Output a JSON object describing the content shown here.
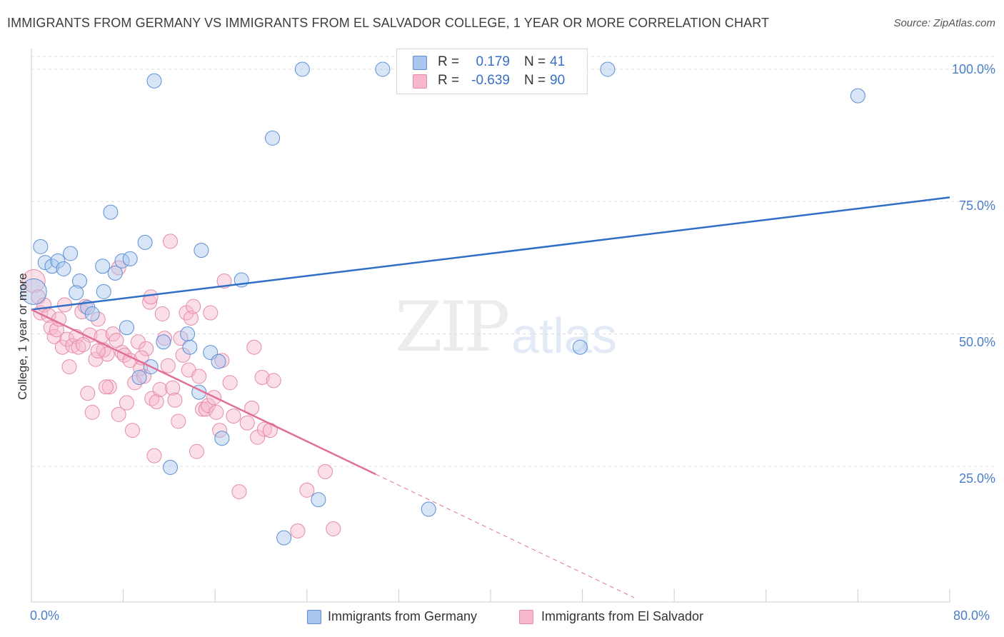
{
  "title": "IMMIGRANTS FROM GERMANY VS IMMIGRANTS FROM EL SALVADOR COLLEGE, 1 YEAR OR MORE CORRELATION CHART",
  "source": "Source: ZipAtlas.com",
  "watermark": {
    "zip": "ZIP",
    "atlas": "atlas"
  },
  "colors": {
    "germany_fill": "#a8c6ee",
    "germany_stroke": "#5b8fd6",
    "germany_line": "#2f6fc6",
    "elsal_fill": "#f7b8cb",
    "elsal_stroke": "#e58aa8",
    "elsal_line": "#e0709a",
    "grid": "#dcdcdc",
    "axis_text": "#4a7fc8"
  },
  "legend": {
    "germany": {
      "r_label": "R =",
      "r_value": "0.179",
      "n_label": "N =",
      "n_value": "41"
    },
    "elsal": {
      "r_label": "R =",
      "r_value": "-0.639",
      "n_label": "N =",
      "n_value": "90"
    }
  },
  "bottom_legend": {
    "germany": "Immigrants from Germany",
    "elsal": "Immigrants from El Salvador"
  },
  "chart_data": {
    "type": "scatter",
    "title": "IMMIGRANTS FROM GERMANY VS IMMIGRANTS FROM EL SALVADOR COLLEGE, 1 YEAR OR MORE CORRELATION CHART",
    "xlabel": "",
    "ylabel": "College, 1 year or more",
    "xlim": [
      0,
      80
    ],
    "ylim": [
      0,
      105
    ],
    "x_tick_labels": [
      "0.0%",
      "80.0%"
    ],
    "y_ticks": [
      25,
      50,
      75,
      100
    ],
    "y_tick_labels": [
      "25.0%",
      "50.0%",
      "75.0%",
      "100.0%"
    ],
    "grid": true,
    "legend_position": "top-center",
    "series": [
      {
        "name": "Immigrants from Germany",
        "R": 0.179,
        "N": 41,
        "trend": {
          "x": [
            0,
            80
          ],
          "y": [
            54.6,
            75.8
          ],
          "dashed_from": null
        },
        "points": [
          [
            0.2,
            58.0,
            18
          ],
          [
            0.8,
            66.5,
            10
          ],
          [
            1.2,
            63.5,
            10
          ],
          [
            1.8,
            62.8,
            10
          ],
          [
            2.3,
            63.8,
            10
          ],
          [
            2.8,
            62.3,
            10
          ],
          [
            3.4,
            65.2,
            10
          ],
          [
            4.2,
            60.0,
            10
          ],
          [
            3.9,
            57.8,
            10
          ],
          [
            4.9,
            55.0,
            10
          ],
          [
            5.3,
            53.8,
            10
          ],
          [
            6.2,
            62.8,
            10
          ],
          [
            6.3,
            58.0,
            10
          ],
          [
            6.9,
            73.0,
            10
          ],
          [
            7.3,
            61.5,
            10
          ],
          [
            7.9,
            63.8,
            10
          ],
          [
            8.6,
            64.2,
            10
          ],
          [
            9.9,
            67.3,
            10
          ],
          [
            10.7,
            97.8,
            10
          ],
          [
            11.5,
            48.5,
            10
          ],
          [
            13.6,
            50.0,
            10
          ],
          [
            13.8,
            47.5,
            10
          ],
          [
            14.6,
            39.0,
            10
          ],
          [
            14.8,
            65.8,
            10
          ],
          [
            15.6,
            46.5,
            10
          ],
          [
            16.6,
            30.3,
            10
          ],
          [
            18.3,
            60.2,
            10
          ],
          [
            21.0,
            87.0,
            10
          ],
          [
            23.6,
            100.0,
            10
          ],
          [
            30.6,
            100.0,
            10
          ],
          [
            50.2,
            100.0,
            10
          ],
          [
            72.0,
            95.0,
            10
          ],
          [
            12.1,
            24.8,
            10
          ],
          [
            22.0,
            11.5,
            10
          ],
          [
            25.0,
            18.7,
            10
          ],
          [
            34.6,
            16.9,
            10
          ],
          [
            47.8,
            47.5,
            10
          ],
          [
            9.4,
            41.8,
            10
          ],
          [
            10.4,
            43.8,
            10
          ],
          [
            8.3,
            51.2,
            10
          ],
          [
            16.3,
            44.8,
            10
          ]
        ]
      },
      {
        "name": "Immigrants from El Salvador",
        "R": -0.639,
        "N": 90,
        "trend": {
          "x": [
            0,
            30.0
          ],
          "y": [
            54.6,
            23.5
          ],
          "dashed_x": [
            30.0,
            52.5
          ],
          "dashed_y": [
            23.5,
            0.2
          ]
        },
        "points": [
          [
            0.2,
            60.0,
            16
          ],
          [
            0.6,
            57.0,
            10
          ],
          [
            0.8,
            54.0,
            10
          ],
          [
            1.1,
            55.5,
            10
          ],
          [
            1.5,
            53.5,
            10
          ],
          [
            1.7,
            51.2,
            10
          ],
          [
            2.0,
            49.5,
            10
          ],
          [
            2.2,
            50.8,
            10
          ],
          [
            2.4,
            52.8,
            10
          ],
          [
            2.7,
            47.5,
            10
          ],
          [
            2.9,
            55.5,
            10
          ],
          [
            3.1,
            49.0,
            10
          ],
          [
            3.3,
            43.8,
            10
          ],
          [
            3.6,
            47.8,
            10
          ],
          [
            3.9,
            49.5,
            10
          ],
          [
            4.1,
            47.5,
            10
          ],
          [
            4.4,
            54.2,
            10
          ],
          [
            4.7,
            55.2,
            10
          ],
          [
            4.9,
            38.8,
            10
          ],
          [
            5.1,
            49.8,
            10
          ],
          [
            5.3,
            35.2,
            10
          ],
          [
            5.6,
            45.2,
            10
          ],
          [
            5.8,
            52.8,
            10
          ],
          [
            6.1,
            49.5,
            10
          ],
          [
            6.3,
            47.0,
            10
          ],
          [
            6.6,
            46.2,
            10
          ],
          [
            6.8,
            40.0,
            10
          ],
          [
            7.1,
            50.0,
            10
          ],
          [
            7.4,
            48.8,
            10
          ],
          [
            7.6,
            34.8,
            10
          ],
          [
            7.9,
            46.5,
            10
          ],
          [
            8.1,
            46.0,
            10
          ],
          [
            8.3,
            37.0,
            10
          ],
          [
            8.6,
            45.0,
            10
          ],
          [
            8.8,
            31.8,
            10
          ],
          [
            9.0,
            40.8,
            10
          ],
          [
            9.3,
            48.5,
            10
          ],
          [
            9.5,
            43.5,
            10
          ],
          [
            9.8,
            42.0,
            10
          ],
          [
            10.0,
            47.2,
            10
          ],
          [
            10.3,
            56.0,
            10
          ],
          [
            10.4,
            57.0,
            10
          ],
          [
            10.5,
            37.8,
            10
          ],
          [
            10.7,
            27.0,
            10
          ],
          [
            10.9,
            37.2,
            10
          ],
          [
            11.2,
            39.5,
            10
          ],
          [
            11.4,
            53.8,
            10
          ],
          [
            11.6,
            49.2,
            10
          ],
          [
            11.9,
            44.0,
            10
          ],
          [
            12.1,
            67.5,
            10
          ],
          [
            12.3,
            39.8,
            10
          ],
          [
            12.5,
            37.5,
            10
          ],
          [
            12.8,
            33.5,
            10
          ],
          [
            13.0,
            49.2,
            10
          ],
          [
            13.2,
            46.0,
            10
          ],
          [
            13.5,
            54.0,
            10
          ],
          [
            13.7,
            43.2,
            10
          ],
          [
            13.9,
            53.0,
            10
          ],
          [
            14.1,
            55.2,
            10
          ],
          [
            14.4,
            27.8,
            10
          ],
          [
            14.6,
            42.0,
            10
          ],
          [
            14.9,
            35.8,
            10
          ],
          [
            15.2,
            35.8,
            10
          ],
          [
            15.4,
            36.5,
            10
          ],
          [
            15.6,
            54.0,
            10
          ],
          [
            15.9,
            38.0,
            10
          ],
          [
            16.1,
            35.2,
            10
          ],
          [
            16.4,
            31.8,
            10
          ],
          [
            16.6,
            45.0,
            10
          ],
          [
            16.8,
            60.0,
            10
          ],
          [
            17.3,
            40.8,
            10
          ],
          [
            17.6,
            34.5,
            10
          ],
          [
            18.1,
            20.2,
            10
          ],
          [
            18.8,
            33.2,
            10
          ],
          [
            19.2,
            36.0,
            10
          ],
          [
            19.4,
            47.5,
            10
          ],
          [
            19.7,
            30.5,
            10
          ],
          [
            20.1,
            41.8,
            10
          ],
          [
            20.3,
            32.0,
            10
          ],
          [
            20.8,
            31.8,
            10
          ],
          [
            21.1,
            41.2,
            10
          ],
          [
            23.2,
            12.8,
            10
          ],
          [
            24.0,
            20.5,
            10
          ],
          [
            25.6,
            24.0,
            10
          ],
          [
            26.3,
            13.2,
            10
          ],
          [
            6.5,
            40.0,
            10
          ],
          [
            7.6,
            62.5,
            10
          ],
          [
            9.6,
            45.5,
            10
          ],
          [
            5.8,
            46.8,
            10
          ],
          [
            4.5,
            48.0,
            10
          ]
        ]
      }
    ]
  }
}
